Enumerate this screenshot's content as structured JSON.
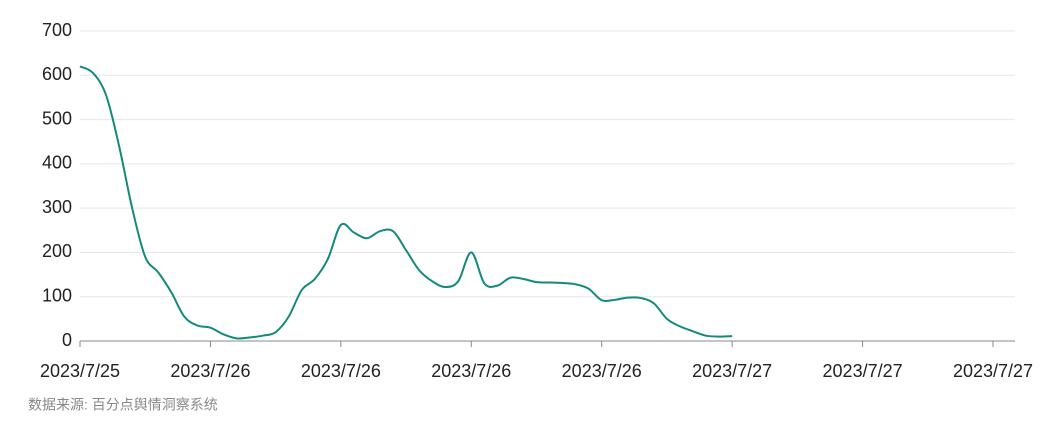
{
  "chart_data": {
    "type": "line",
    "categories": [
      "2023/7/25",
      null,
      null,
      null,
      null,
      null,
      null,
      null,
      null,
      null,
      "2023/7/26",
      null,
      null,
      null,
      null,
      null,
      null,
      null,
      null,
      null,
      "2023/7/26",
      null,
      null,
      null,
      null,
      null,
      null,
      null,
      null,
      null,
      "2023/7/26",
      null,
      null,
      null,
      null,
      null,
      null,
      null,
      null,
      null,
      "2023/7/26",
      null,
      null,
      null,
      null,
      null,
      null,
      null,
      null,
      null,
      "2023/7/27",
      null,
      null,
      null,
      null,
      null,
      null,
      null,
      null,
      null,
      "2023/7/27",
      null,
      null,
      null,
      null,
      null,
      null,
      null,
      null,
      null,
      "2023/7/27"
    ],
    "series": [
      {
        "color": "#138a7b",
        "values": [
          620,
          605,
          555,
          440,
          300,
          190,
          155,
          110,
          55,
          35,
          30,
          15,
          6,
          8,
          12,
          20,
          55,
          115,
          140,
          185,
          262,
          245,
          232,
          248,
          248,
          205,
          160,
          135,
          122,
          135,
          200,
          130,
          125,
          143,
          140,
          133,
          132,
          131,
          128,
          118,
          92,
          93,
          98,
          97,
          85,
          50,
          33,
          22,
          12,
          10,
          11,
          null,
          null,
          null,
          null,
          null,
          null,
          null,
          null,
          null,
          null,
          null,
          null,
          null,
          null,
          null,
          null,
          null,
          null,
          null,
          null
        ]
      }
    ],
    "ylim": [
      0,
      700
    ],
    "yticks": [
      0,
      100,
      200,
      300,
      400,
      500,
      600,
      700
    ],
    "grid": true,
    "source": "数据来源: 百分点舆情洞察系统"
  }
}
